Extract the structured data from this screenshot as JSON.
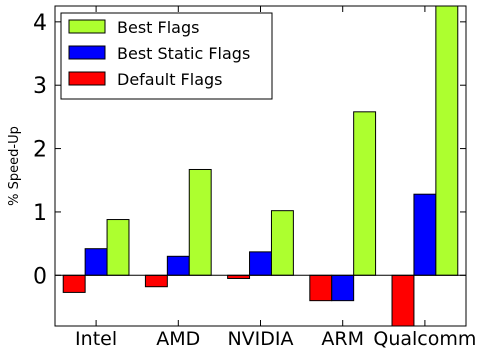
{
  "chart_data": {
    "type": "bar",
    "categories": [
      "Intel",
      "AMD",
      "NVIDIA",
      "ARM",
      "Qualcomm"
    ],
    "series": [
      {
        "name": "Default Flags",
        "color": "#ff0000",
        "values": [
          -0.27,
          -0.18,
          -0.05,
          -0.4,
          -0.8
        ]
      },
      {
        "name": "Best Static Flags",
        "color": "#0000ff",
        "values": [
          0.42,
          0.3,
          0.37,
          -0.4,
          1.28
        ]
      },
      {
        "name": "Best Flags",
        "color": "#adff2f",
        "values": [
          0.88,
          1.67,
          1.02,
          2.58,
          4.25
        ]
      }
    ],
    "legend_order": [
      "Best Flags",
      "Best Static Flags",
      "Default Flags"
    ],
    "legend_position": "top-left",
    "xlabel": "",
    "ylabel": "% Speed-Up",
    "ylim": [
      -0.8,
      4.25
    ],
    "yticks": [
      0,
      1,
      2,
      3,
      4
    ],
    "grid": false
  }
}
